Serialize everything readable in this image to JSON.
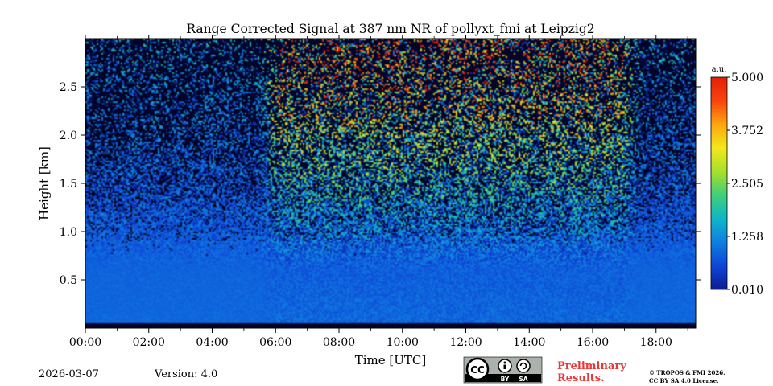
{
  "chart_data": {
    "type": "heatmap",
    "title": "Range Corrected Signal at 387 nm NR of pollyxt_fmi at Leipzig2",
    "xlabel": "Time [UTC]",
    "ylabel": "Height [km]",
    "xlim_hours": [
      0,
      19.25
    ],
    "ylim_km": [
      0,
      3.0
    ],
    "x_ticks": [
      {
        "h": 0,
        "label": "00:00"
      },
      {
        "h": 2,
        "label": "02:00"
      },
      {
        "h": 4,
        "label": "04:00"
      },
      {
        "h": 6,
        "label": "06:00"
      },
      {
        "h": 8,
        "label": "08:00"
      },
      {
        "h": 10,
        "label": "10:00"
      },
      {
        "h": 12,
        "label": "12:00"
      },
      {
        "h": 14,
        "label": "14:00"
      },
      {
        "h": 16,
        "label": "16:00"
      },
      {
        "h": 18,
        "label": "18:00"
      }
    ],
    "y_ticks": [
      {
        "v": 0.5,
        "label": "0.5"
      },
      {
        "v": 1.0,
        "label": "1.0"
      },
      {
        "v": 1.5,
        "label": "1.5"
      },
      {
        "v": 2.0,
        "label": "2.0"
      },
      {
        "v": 2.5,
        "label": "2.5"
      }
    ],
    "colorbar": {
      "unit": "a.u.",
      "min": 0.01,
      "max": 5.0,
      "tick_values": [
        0.01,
        1.258,
        2.505,
        3.752,
        5.0
      ],
      "tick_labels": [
        "0.010",
        "1.258",
        "2.505",
        "3.752",
        "5.000"
      ],
      "colormap": [
        "#0a1d8f",
        "#0f45d8",
        "#0e7fe0",
        "#0fb6c8",
        "#3fcf7a",
        "#a7e02a",
        "#f3e81a",
        "#fba60f",
        "#f7430c",
        "#e51f0a"
      ]
    },
    "signal_profile": {
      "heights_km": [
        0.05,
        0.6,
        1.0,
        1.5,
        2.0,
        2.5,
        3.0
      ],
      "night_au": [
        0.9,
        0.85,
        0.75,
        0.55,
        0.35,
        0.25,
        0.2
      ],
      "day_au": [
        0.9,
        0.8,
        0.85,
        1.0,
        1.3,
        1.6,
        1.9
      ]
    },
    "day_period_hours": [
      5.5,
      17.5
    ]
  },
  "footer": {
    "date": "2026-03-07",
    "version": "Version: 4.0",
    "license_badge": "cc-by-sa-badge-icon",
    "cc_text": "CC",
    "by_text": "BY",
    "sa_text": "SA",
    "prelim_line1": "Preliminary",
    "prelim_line2": "Results.",
    "copyright_line1": "© TROPOS & FMI 2026.",
    "copyright_line2": "CC BY SA 4.0 License."
  }
}
